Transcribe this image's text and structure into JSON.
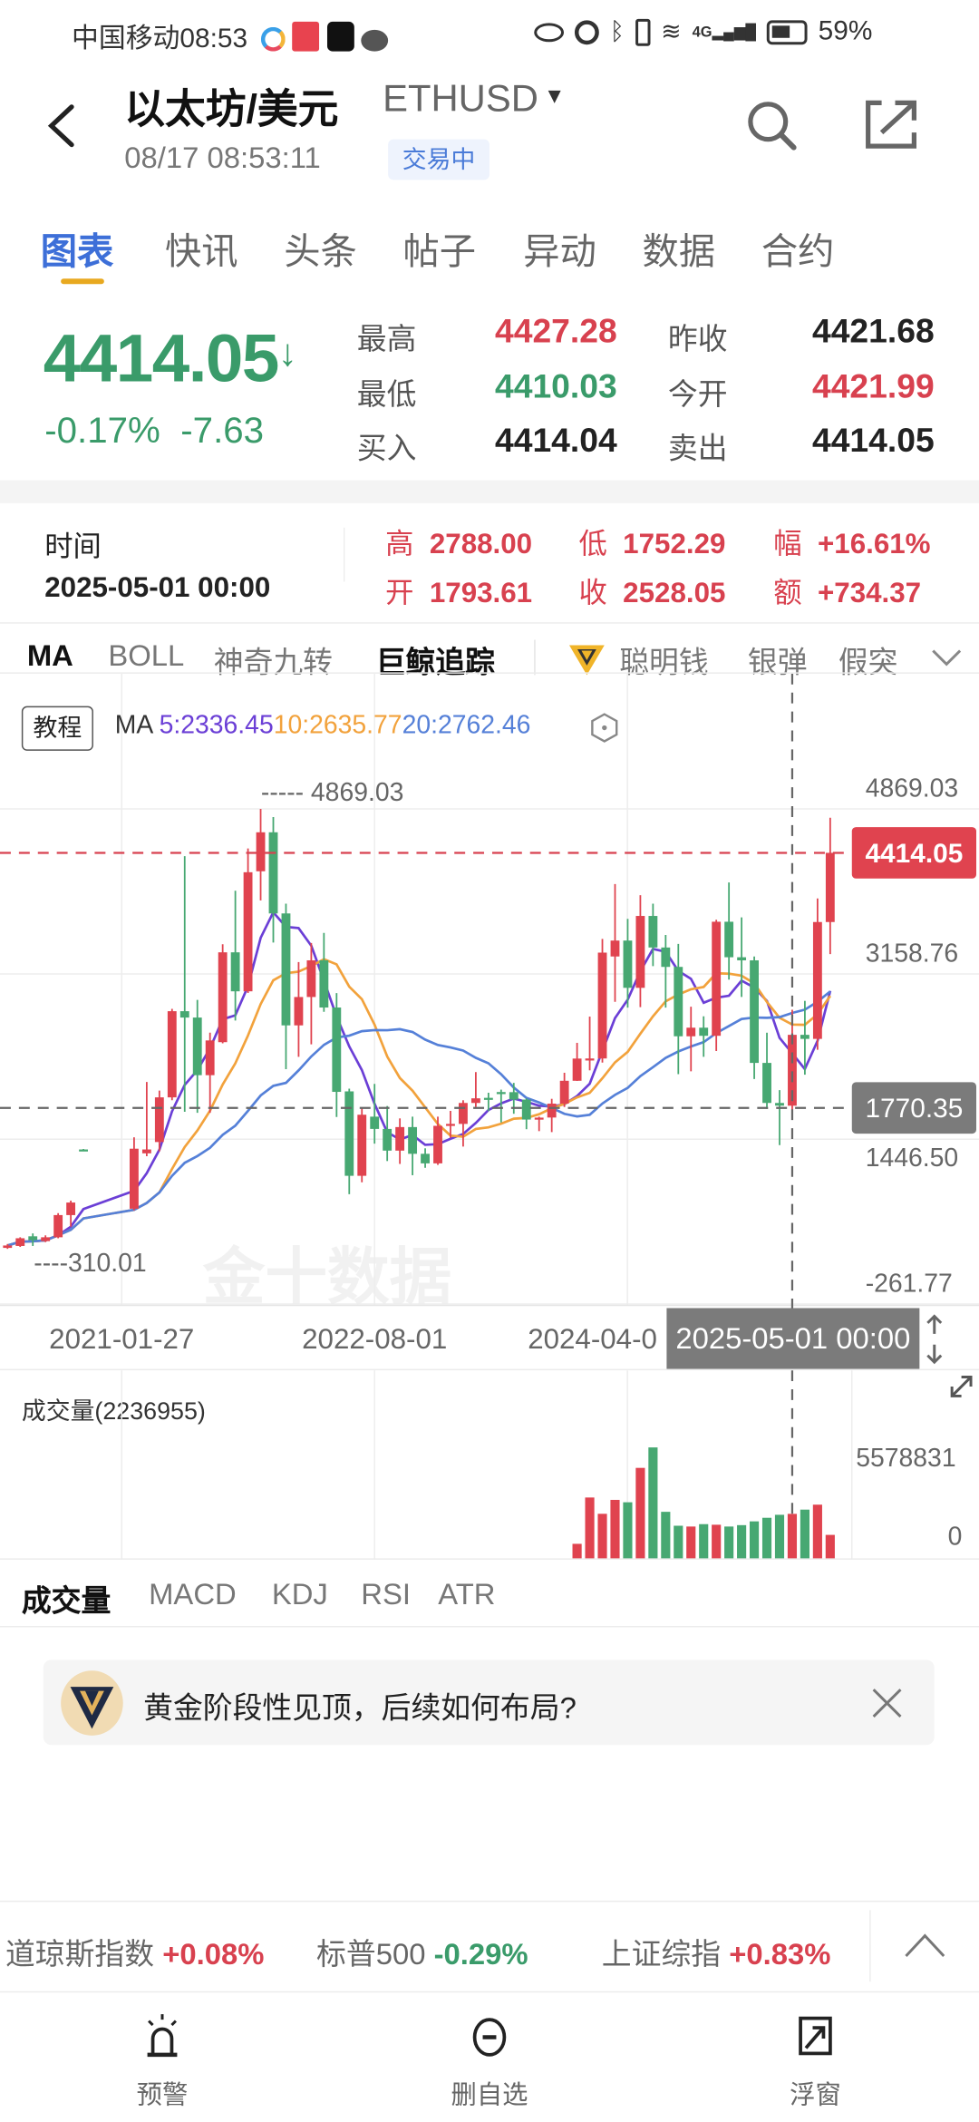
{
  "status_bar": {
    "carrier": "中国移动",
    "time": "08:53",
    "network": "4G",
    "battery": "59%"
  },
  "header": {
    "title": "以太坊/美元",
    "symbol": "ETHUSD",
    "datetime": "08/17 08:53:11",
    "status_badge": "交易中"
  },
  "tabs": [
    {
      "label": "图表",
      "active": true
    },
    {
      "label": "快讯"
    },
    {
      "label": "头条"
    },
    {
      "label": "帖子"
    },
    {
      "label": "异动"
    },
    {
      "label": "数据"
    },
    {
      "label": "合约"
    }
  ],
  "quote": {
    "price": "4414.05",
    "change_pct": "-0.17%",
    "change": "-7.63",
    "direction": "down",
    "stats": [
      {
        "label": "最高",
        "value": "4427.28",
        "color": "#d8414f"
      },
      {
        "label": "昨收",
        "value": "4421.68",
        "color": "#222222"
      },
      {
        "label": "最低",
        "value": "4410.03",
        "color": "#3a9b6a"
      },
      {
        "label": "今开",
        "value": "4421.99",
        "color": "#d8414f"
      },
      {
        "label": "买入",
        "value": "4414.04",
        "color": "#222222"
      },
      {
        "label": "卖出",
        "value": "4414.05",
        "color": "#222222"
      }
    ]
  },
  "crosshair_info": {
    "time_label": "时间",
    "time": "2025-05-01 00:00",
    "fields": [
      {
        "label": "高",
        "value": "2788.00"
      },
      {
        "label": "低",
        "value": "1752.29"
      },
      {
        "label": "幅",
        "value": "+16.61%"
      },
      {
        "label": "开",
        "value": "1793.61"
      },
      {
        "label": "收",
        "value": "2528.05"
      },
      {
        "label": "额",
        "value": "+734.37"
      }
    ]
  },
  "indicator_tabs": [
    {
      "label": "MA",
      "active": true
    },
    {
      "label": "BOLL"
    },
    {
      "label": "神奇九转"
    },
    {
      "label": "巨鲸追踪",
      "bold": true
    },
    {
      "label": "聪明钱",
      "icon": "smart-money-diamond-icon"
    },
    {
      "label": "银弹"
    },
    {
      "label": "假突破"
    }
  ],
  "chart_data": {
    "type": "candlestick",
    "tutorial_label": "教程",
    "ma_label": "MA",
    "ma_legend": [
      {
        "text": "5:2336.45",
        "period": 5,
        "color": "#6b3fd6"
      },
      {
        "text": "10:2635.77",
        "period": 10,
        "color": "#f2a23c"
      },
      {
        "text": "20:2762.46",
        "period": 20,
        "color": "#5580d8"
      }
    ],
    "up_color": "#e0434f",
    "down_color": "#47a872",
    "y_ticks": [
      "4869.03",
      "3158.76",
      "1446.50",
      "-261.77"
    ],
    "y_tick_values": [
      4869.03,
      3158.76,
      1446.5,
      -261.77
    ],
    "x_ticks": [
      "2021-01-27",
      "2022-08-01",
      "2024-04-0"
    ],
    "max_label": "4869.03",
    "min_label": "310.01",
    "last_price": "4414.05",
    "last_price_value": 4414.05,
    "crosshair_price": "1770.35",
    "crosshair_price_value": 1770.35,
    "crosshair_date": "2025-05-01 00:00",
    "crosshair_index": 62,
    "watermark": "金十数据",
    "candles": [
      [
        "2020-03",
        320,
        360,
        310.01,
        345
      ],
      [
        "2020-04",
        340,
        430,
        330,
        420
      ],
      [
        "2020-05",
        440,
        470,
        340,
        400
      ],
      [
        "2020-06",
        390,
        450,
        380,
        430
      ],
      [
        "2020-07",
        430,
        680,
        420,
        660
      ],
      [
        "2020-08",
        660,
        810,
        540,
        790
      ],
      [
        "2020-09",
        1340,
        1345,
        1325,
        1330
      ],
      [
        "2020-10",
        null,
        null,
        null,
        null
      ],
      [
        "2020-11",
        null,
        null,
        null,
        null
      ],
      [
        "2020-12",
        null,
        null,
        null,
        null
      ],
      [
        "2021-01",
        726,
        1466,
        709,
        1348
      ],
      [
        "2021-02",
        1300,
        2040,
        1270,
        1340
      ],
      [
        "2021-03",
        1417,
        1950,
        1320,
        1880
      ],
      [
        "2021-04",
        1880,
        2797,
        1850,
        2773
      ],
      [
        "2021-05",
        2773,
        4380,
        1730,
        2707
      ],
      [
        "2021-06",
        2707,
        2890,
        1720,
        2110
      ],
      [
        "2021-07",
        2110,
        2550,
        1720,
        2470
      ],
      [
        "2021-08",
        2452,
        3467,
        2440,
        3383
      ],
      [
        "2021-09",
        3383,
        4021,
        2676,
        2979
      ],
      [
        "2021-10",
        2979,
        4459,
        2962,
        4213
      ],
      [
        "2021-11",
        4223,
        4869.03,
        3921,
        4627
      ],
      [
        "2021-12",
        4627,
        4785,
        3484,
        3786
      ],
      [
        "2022-01",
        3786,
        3887,
        2172,
        2626
      ],
      [
        "2022-02",
        2626,
        3282,
        2300,
        2920
      ],
      [
        "2022-03",
        2920,
        3480,
        2430,
        3300
      ],
      [
        "2022-04",
        3300,
        3584,
        2767,
        2811
      ],
      [
        "2022-05",
        2811,
        2960,
        1676,
        1937
      ],
      [
        "2022-06",
        1942,
        1970,
        877,
        1067
      ],
      [
        "2022-07",
        1067,
        1770,
        1000,
        1700
      ],
      [
        "2022-08",
        1680,
        2020,
        1400,
        1553
      ],
      [
        "2022-09",
        1553,
        1790,
        1220,
        1328
      ],
      [
        "2022-10",
        1328,
        1662,
        1190,
        1572
      ],
      [
        "2022-11",
        1572,
        1680,
        1073,
        1295
      ],
      [
        "2022-12",
        1295,
        1352,
        1150,
        1196
      ],
      [
        "2023-01",
        1196,
        1680,
        1180,
        1585
      ],
      [
        "2023-02",
        1585,
        1740,
        1460,
        1605
      ],
      [
        "2023-03",
        1605,
        1850,
        1370,
        1822
      ],
      [
        "2023-04",
        1822,
        2142,
        1780,
        1870
      ],
      [
        "2023-05",
        1875,
        1928,
        1738,
        1860
      ],
      [
        "2023-06",
        1935,
        1960,
        1620,
        1930
      ],
      [
        "2023-07",
        1934,
        2030,
        1710,
        1857
      ],
      [
        "2023-08",
        1857,
        1870,
        1550,
        1650
      ],
      [
        "2023-09",
        1650,
        1680,
        1530,
        1670
      ],
      [
        "2023-10",
        1671,
        1865,
        1520,
        1815
      ],
      [
        "2023-11",
        1815,
        2135,
        1780,
        2052
      ],
      [
        "2023-12",
        2052,
        2445,
        2050,
        2282
      ],
      [
        "2024-01",
        2282,
        2717,
        2160,
        2283
      ],
      [
        "2024-02",
        2283,
        3522,
        2240,
        3380
      ],
      [
        "2024-03",
        3340,
        4090,
        2870,
        3505
      ],
      [
        "2024-04",
        3505,
        3730,
        2810,
        3015
      ],
      [
        "2024-05",
        3015,
        3975,
        2815,
        3760
      ],
      [
        "2024-06",
        3760,
        3887,
        3240,
        3433
      ],
      [
        "2024-07",
        3433,
        3563,
        2810,
        3232
      ],
      [
        "2024-08",
        3232,
        3470,
        2120,
        2513
      ],
      [
        "2024-09",
        2513,
        2820,
        2150,
        2602
      ],
      [
        "2024-10",
        2602,
        2720,
        2300,
        2518
      ],
      [
        "2024-11",
        2518,
        3720,
        2360,
        3700
      ],
      [
        "2024-12",
        3700,
        4107,
        3100,
        3332
      ],
      [
        "2025-01",
        3332,
        3745,
        2920,
        3300
      ],
      [
        "2025-02",
        3300,
        3340,
        2070,
        2237
      ],
      [
        "2025-03",
        2237,
        2550,
        1760,
        1822
      ],
      [
        "2025-04",
        1822,
        1955,
        1385,
        1794
      ],
      [
        "2025-05",
        1793.61,
        2788.0,
        1752.29,
        2528.05
      ],
      [
        "2025-06",
        2528,
        2880,
        2115,
        2486
      ],
      [
        "2025-07",
        2486,
        3941,
        2373,
        3697
      ],
      [
        "2025-08",
        3697,
        4778,
        3365,
        4414.05
      ]
    ]
  },
  "volume": {
    "title": "成交量(2236955)",
    "axis_max": "5578831",
    "axis_max_value": 5578831,
    "axis_min": "0",
    "start_index": 45,
    "values": [
      730000,
      3060000,
      2240000,
      2940000,
      2820000,
      4550000,
      5578831,
      2340000,
      1640000,
      1600000,
      1720000,
      1690000,
      1600000,
      1670000,
      1860000,
      2040000,
      2190000,
      2236955,
      2450000,
      2700000,
      1180000
    ]
  },
  "sub_tabs": [
    {
      "label": "成交量",
      "active": true
    },
    {
      "label": "MACD"
    },
    {
      "label": "KDJ"
    },
    {
      "label": "RSI"
    },
    {
      "label": "ATR"
    }
  ],
  "banner": {
    "text": "黄金阶段性见顶，后续如何布局?"
  },
  "ticker": [
    {
      "name": "道琼斯指数",
      "change": "+0.08%",
      "color": "#d8414f"
    },
    {
      "name": "标普500",
      "change": "-0.29%",
      "color": "#3a9b6a"
    },
    {
      "name": "上证综指",
      "change": "+0.83%",
      "color": "#d8414f"
    }
  ],
  "bottom_nav": [
    {
      "label": "预警",
      "icon": "alarm-light-icon"
    },
    {
      "label": "删自选",
      "icon": "remove-watchlist-icon"
    },
    {
      "label": "浮窗",
      "icon": "float-window-icon"
    }
  ]
}
